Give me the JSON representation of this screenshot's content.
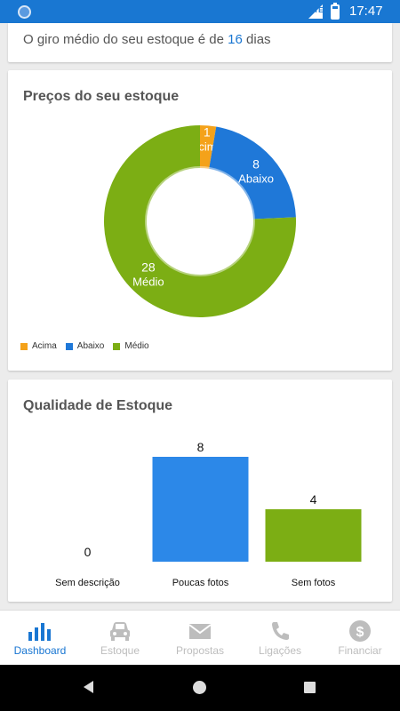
{
  "status_bar": {
    "network": "LTE",
    "time": "17:47"
  },
  "giro": {
    "prefix": "O giro médio do seu estoque é de",
    "days": "16",
    "suffix": "dias"
  },
  "precos": {
    "title": "Preços do seu estoque",
    "chart_data": {
      "type": "pie",
      "donut": true,
      "categories": [
        "Acima",
        "Abaixo",
        "Médio"
      ],
      "values": [
        1,
        8,
        28
      ],
      "colors": [
        "#f4a21a",
        "#1f78d8",
        "#7cae14"
      ],
      "legend": "bottom-left"
    }
  },
  "qualidade": {
    "title": "Qualidade de Estoque",
    "chart_data": {
      "type": "bar",
      "categories": [
        "Sem descrição",
        "Poucas fotos",
        "Sem fotos"
      ],
      "values": [
        0,
        8,
        4
      ],
      "colors": [
        "#2c88e8",
        "#2c88e8",
        "#7cae14"
      ],
      "ylim": [
        0,
        8
      ]
    }
  },
  "bottom_nav": [
    {
      "label": "Dashboard",
      "icon": "bar-chart-icon",
      "active": true
    },
    {
      "label": "Estoque",
      "icon": "car-icon",
      "active": false
    },
    {
      "label": "Propostas",
      "icon": "envelope-icon",
      "active": false
    },
    {
      "label": "Ligações",
      "icon": "phone-icon",
      "active": false
    },
    {
      "label": "Financiar",
      "icon": "dollar-icon",
      "active": false
    }
  ]
}
